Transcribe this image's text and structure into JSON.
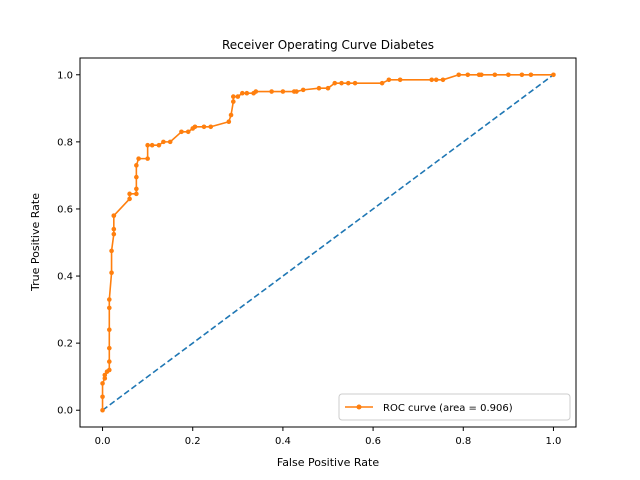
{
  "chart_data": {
    "type": "line",
    "title": "Receiver Operating Curve Diabetes",
    "xlabel": "False Positive Rate",
    "ylabel": "True Positive Rate",
    "xlim": [
      -0.05,
      1.05
    ],
    "ylim": [
      -0.05,
      1.05
    ],
    "xticks": [
      "0.0",
      "0.2",
      "0.4",
      "0.6",
      "0.8",
      "1.0"
    ],
    "yticks": [
      "0.0",
      "0.2",
      "0.4",
      "0.6",
      "0.8",
      "1.0"
    ],
    "grid": false,
    "legend_position": "bottom-right",
    "series": [
      {
        "name": "ROC curve (area = 0.906)",
        "style": "line-with-markers",
        "color": "#ff7f0e",
        "x": [
          0.0,
          0.0,
          0.0,
          0.005,
          0.005,
          0.01,
          0.015,
          0.015,
          0.015,
          0.015,
          0.015,
          0.015,
          0.02,
          0.02,
          0.025,
          0.025,
          0.025,
          0.025,
          0.06,
          0.06,
          0.075,
          0.075,
          0.075,
          0.075,
          0.08,
          0.1,
          0.1,
          0.11,
          0.125,
          0.135,
          0.15,
          0.175,
          0.19,
          0.2,
          0.205,
          0.225,
          0.24,
          0.28,
          0.285,
          0.29,
          0.29,
          0.3,
          0.31,
          0.32,
          0.335,
          0.34,
          0.375,
          0.4,
          0.425,
          0.43,
          0.445,
          0.48,
          0.5,
          0.515,
          0.53,
          0.545,
          0.56,
          0.62,
          0.635,
          0.66,
          0.73,
          0.74,
          0.755,
          0.79,
          0.81,
          0.835,
          0.84,
          0.87,
          0.9,
          0.93,
          0.95,
          1.0
        ],
        "y": [
          0.0,
          0.04,
          0.08,
          0.095,
          0.105,
          0.115,
          0.12,
          0.145,
          0.185,
          0.24,
          0.305,
          0.33,
          0.41,
          0.475,
          0.525,
          0.54,
          0.58,
          0.58,
          0.63,
          0.645,
          0.645,
          0.66,
          0.695,
          0.73,
          0.75,
          0.75,
          0.79,
          0.79,
          0.79,
          0.8,
          0.8,
          0.83,
          0.83,
          0.84,
          0.845,
          0.845,
          0.845,
          0.86,
          0.88,
          0.92,
          0.935,
          0.935,
          0.945,
          0.945,
          0.945,
          0.95,
          0.95,
          0.95,
          0.95,
          0.95,
          0.955,
          0.96,
          0.96,
          0.975,
          0.975,
          0.975,
          0.975,
          0.975,
          0.985,
          0.985,
          0.985,
          0.985,
          0.985,
          1.0,
          1.0,
          1.0,
          1.0,
          1.0,
          1.0,
          1.0,
          1.0,
          1.0
        ]
      },
      {
        "name": "",
        "style": "dashed-line",
        "color": "#1f77b4",
        "x": [
          0.0,
          1.0
        ],
        "y": [
          0.0,
          1.0
        ]
      }
    ]
  }
}
